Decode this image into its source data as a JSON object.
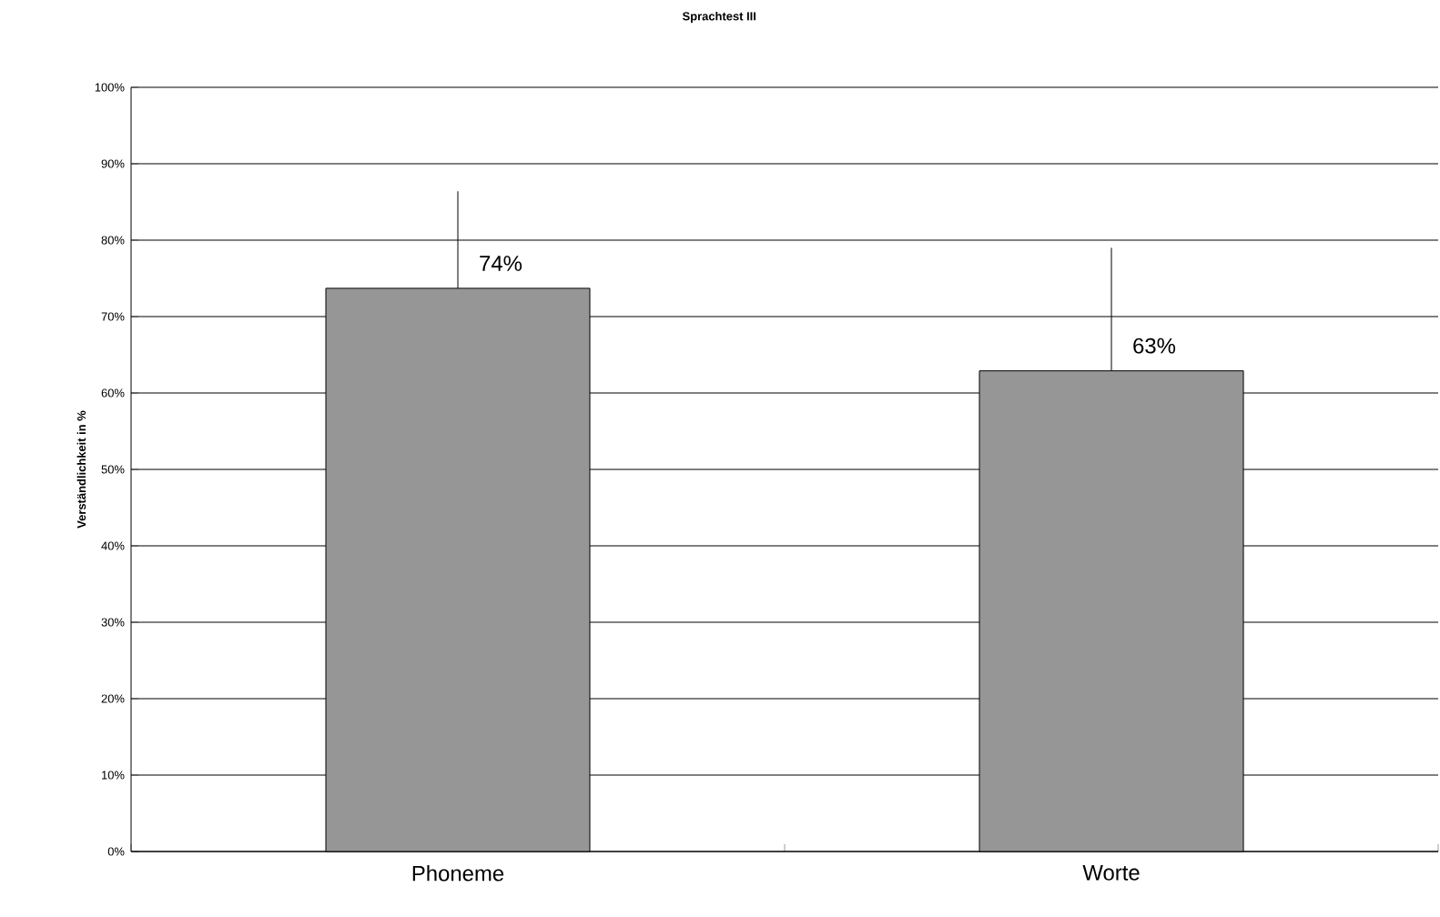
{
  "chart_data": {
    "type": "bar",
    "title": "Sprachtest III",
    "ylabel": "Verständlichkeit in %",
    "categories": [
      "Phoneme",
      "Worte"
    ],
    "values": [
      73.7,
      62.9
    ],
    "color": "#969696",
    "value_labels": [
      "74%",
      "63%"
    ],
    "errors": [
      [
        73.7,
        86.4
      ],
      [
        62.9,
        79.0
      ]
    ],
    "ylim": [
      0,
      100
    ],
    "yticks": [
      {
        "value": 0,
        "label": "0%"
      },
      {
        "value": 10,
        "label": "10%"
      },
      {
        "value": 20,
        "label": "20%"
      },
      {
        "value": 30,
        "label": "30%"
      },
      {
        "value": 40,
        "label": "40%"
      },
      {
        "value": 50,
        "label": "50%"
      },
      {
        "value": 60,
        "label": "60%"
      },
      {
        "value": 70,
        "label": "70%"
      },
      {
        "value": 80,
        "label": "80%"
      },
      {
        "value": 90,
        "label": "90%"
      },
      {
        "value": 100,
        "label": "100%"
      }
    ],
    "grid": "y"
  }
}
